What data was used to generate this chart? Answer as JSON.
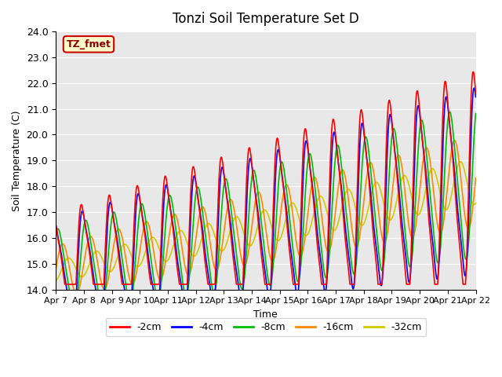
{
  "title": "Tonzi Soil Temperature Set D",
  "xlabel": "Time",
  "ylabel": "Soil Temperature (C)",
  "ylim": [
    14.0,
    24.0
  ],
  "yticks": [
    14.0,
    15.0,
    16.0,
    17.0,
    18.0,
    19.0,
    20.0,
    21.0,
    22.0,
    23.0,
    24.0
  ],
  "xtick_labels": [
    "Apr 7",
    "Apr 8",
    "Apr 9",
    "Apr 10",
    "Apr 11",
    "Apr 12",
    "Apr 13",
    "Apr 14",
    "Apr 15",
    "Apr 16",
    "Apr 17",
    "Apr 18",
    "Apr 19",
    "Apr 20",
    "Apr 21",
    "Apr 22"
  ],
  "line_colors": [
    "#ff0000",
    "#0000ff",
    "#00bb00",
    "#ff8800",
    "#cccc00"
  ],
  "line_labels": [
    "-2cm",
    "-4cm",
    "-8cm",
    "-16cm",
    "-32cm"
  ],
  "annotation_text": "TZ_fmet",
  "bg_color": "#e8e8e8",
  "fig_bg_color": "#ffffff"
}
